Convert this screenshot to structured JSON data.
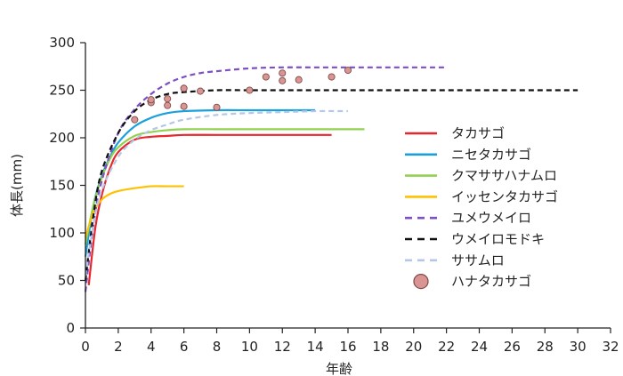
{
  "chart_data": {
    "type": "line",
    "xlabel": "年齢",
    "ylabel": "体長(mm)",
    "xlim": [
      0,
      32
    ],
    "ylim": [
      0,
      300
    ],
    "xticks": [
      0,
      2,
      4,
      6,
      8,
      10,
      12,
      14,
      16,
      18,
      20,
      22,
      24,
      26,
      28,
      30,
      32
    ],
    "yticks": [
      0,
      50,
      100,
      150,
      200,
      250,
      300
    ],
    "grid": false,
    "legend_position": "right",
    "series": [
      {
        "name": "タカサゴ",
        "color": "#e8262b",
        "style": "solid",
        "x": [
          0.2,
          0.6,
          1,
          1.5,
          2,
          3,
          4,
          5,
          6,
          8,
          10,
          12,
          15
        ],
        "y": [
          45,
          105,
          140,
          168,
          185,
          198,
          201,
          202,
          203,
          203,
          203,
          203,
          203
        ]
      },
      {
        "name": "ニセタカサゴ",
        "color": "#1aa0dc",
        "style": "solid",
        "x": [
          0,
          0.5,
          1,
          1.5,
          2,
          3,
          4,
          5,
          6,
          8,
          10,
          12,
          14
        ],
        "y": [
          75,
          130,
          160,
          180,
          195,
          212,
          221,
          226,
          228,
          229,
          229,
          229,
          229
        ]
      },
      {
        "name": "クマササハナムロ",
        "color": "#92d050",
        "style": "solid",
        "x": [
          0,
          0.5,
          1,
          1.5,
          2,
          3,
          4,
          5,
          6,
          8,
          10,
          12,
          14,
          17
        ],
        "y": [
          88,
          130,
          158,
          178,
          190,
          202,
          206,
          208,
          209,
          209,
          209,
          209,
          209,
          209
        ]
      },
      {
        "name": "イッセンタカサゴ",
        "color": "#ffc000",
        "style": "solid",
        "x": [
          0,
          0.5,
          1,
          1.5,
          2,
          3,
          4,
          5,
          6
        ],
        "y": [
          95,
          122,
          135,
          141,
          144,
          147,
          149,
          149,
          149
        ]
      },
      {
        "name": "ユメウメイロ",
        "color": "#7e4fc4",
        "style": "dashed",
        "x": [
          0,
          0.5,
          1,
          2,
          3,
          4,
          5,
          6,
          7,
          8,
          10,
          12,
          14,
          16,
          18,
          22
        ],
        "y": [
          38,
          110,
          155,
          205,
          230,
          246,
          257,
          264,
          268,
          270,
          273,
          274,
          274,
          274,
          274,
          274
        ]
      },
      {
        "name": "ウメイロモドキ",
        "color": "#111111",
        "style": "dashed",
        "x": [
          0,
          0.5,
          1,
          2,
          3,
          4,
          5,
          6,
          8,
          10,
          12,
          15,
          20,
          25,
          30
        ],
        "y": [
          50,
          120,
          165,
          205,
          228,
          240,
          246,
          248,
          250,
          250,
          250,
          250,
          250,
          250,
          250
        ]
      },
      {
        "name": "ササムロ",
        "color": "#b4c7e7",
        "style": "dashed",
        "x": [
          0,
          0.5,
          1,
          2,
          3,
          4,
          5,
          6,
          8,
          10,
          12,
          14,
          16
        ],
        "y": [
          55,
          110,
          145,
          180,
          198,
          208,
          214,
          219,
          224,
          226,
          227,
          228,
          228
        ]
      },
      {
        "name": "ハナタカサゴ",
        "color": "#d99594",
        "style": "scatter",
        "x": [
          3,
          4,
          4,
          5,
          5,
          6,
          6,
          7,
          8,
          10,
          11,
          12,
          12,
          13,
          15,
          16
        ],
        "y": [
          219,
          237,
          240,
          234,
          241,
          252,
          233,
          249,
          232,
          250,
          264,
          268,
          260,
          261,
          264,
          271
        ]
      }
    ]
  }
}
